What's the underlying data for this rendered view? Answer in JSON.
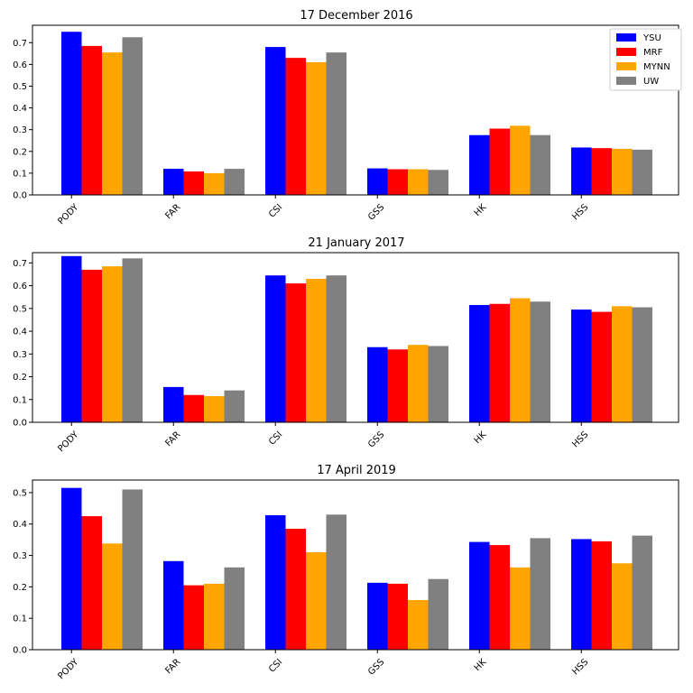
{
  "colors": {
    "YSU": "#0000ff",
    "MRF": "#ff0000",
    "MYNN": "#ffa500",
    "UW": "#808080"
  },
  "legend": {
    "placement": "top-right",
    "entries": [
      "YSU",
      "MRF",
      "MYNN",
      "UW"
    ]
  },
  "chart_data": [
    {
      "type": "bar",
      "title": "17 December 2016",
      "categories": [
        "PODY",
        "FAR",
        "CSI",
        "GSS",
        "HK",
        "HSS"
      ],
      "ylim": [
        0,
        0.78
      ],
      "yticks": [
        0.0,
        0.1,
        0.2,
        0.3,
        0.4,
        0.5,
        0.6,
        0.7
      ],
      "ytick_labels": [
        "0.0",
        "0.1",
        "0.2",
        "0.3",
        "0.4",
        "0.5",
        "0.6",
        "0.7"
      ],
      "series": [
        {
          "name": "YSU",
          "values": [
            0.75,
            0.12,
            0.68,
            0.122,
            0.275,
            0.218
          ]
        },
        {
          "name": "MRF",
          "values": [
            0.685,
            0.108,
            0.63,
            0.118,
            0.305,
            0.215
          ]
        },
        {
          "name": "MYNN",
          "values": [
            0.655,
            0.1,
            0.61,
            0.118,
            0.318,
            0.212
          ]
        },
        {
          "name": "UW",
          "values": [
            0.725,
            0.12,
            0.655,
            0.115,
            0.275,
            0.208
          ]
        }
      ]
    },
    {
      "type": "bar",
      "title": "21 January 2017",
      "categories": [
        "PODY",
        "FAR",
        "CSI",
        "GSS",
        "HK",
        "HSS"
      ],
      "ylim": [
        0,
        0.745
      ],
      "yticks": [
        0.0,
        0.1,
        0.2,
        0.3,
        0.4,
        0.5,
        0.6,
        0.7
      ],
      "ytick_labels": [
        "0.0",
        "0.1",
        "0.2",
        "0.3",
        "0.4",
        "0.5",
        "0.6",
        "0.7"
      ],
      "series": [
        {
          "name": "YSU",
          "values": [
            0.73,
            0.155,
            0.645,
            0.33,
            0.515,
            0.495
          ]
        },
        {
          "name": "MRF",
          "values": [
            0.67,
            0.12,
            0.61,
            0.32,
            0.52,
            0.485
          ]
        },
        {
          "name": "MYNN",
          "values": [
            0.685,
            0.115,
            0.63,
            0.34,
            0.545,
            0.51
          ]
        },
        {
          "name": "UW",
          "values": [
            0.72,
            0.14,
            0.645,
            0.335,
            0.53,
            0.505
          ]
        }
      ]
    },
    {
      "type": "bar",
      "title": "17 April 2019",
      "categories": [
        "PODY",
        "FAR",
        "CSI",
        "GSS",
        "HK",
        "HSS"
      ],
      "ylim": [
        0,
        0.54
      ],
      "yticks": [
        0.0,
        0.1,
        0.2,
        0.3,
        0.4,
        0.5
      ],
      "ytick_labels": [
        "0.0",
        "0.1",
        "0.2",
        "0.3",
        "0.4",
        "0.5"
      ],
      "series": [
        {
          "name": "YSU",
          "values": [
            0.515,
            0.282,
            0.428,
            0.213,
            0.343,
            0.352
          ]
        },
        {
          "name": "MRF",
          "values": [
            0.425,
            0.205,
            0.385,
            0.21,
            0.333,
            0.345
          ]
        },
        {
          "name": "MYNN",
          "values": [
            0.338,
            0.21,
            0.31,
            0.158,
            0.262,
            0.275
          ]
        },
        {
          "name": "UW",
          "values": [
            0.51,
            0.262,
            0.43,
            0.225,
            0.355,
            0.363
          ]
        }
      ]
    }
  ]
}
